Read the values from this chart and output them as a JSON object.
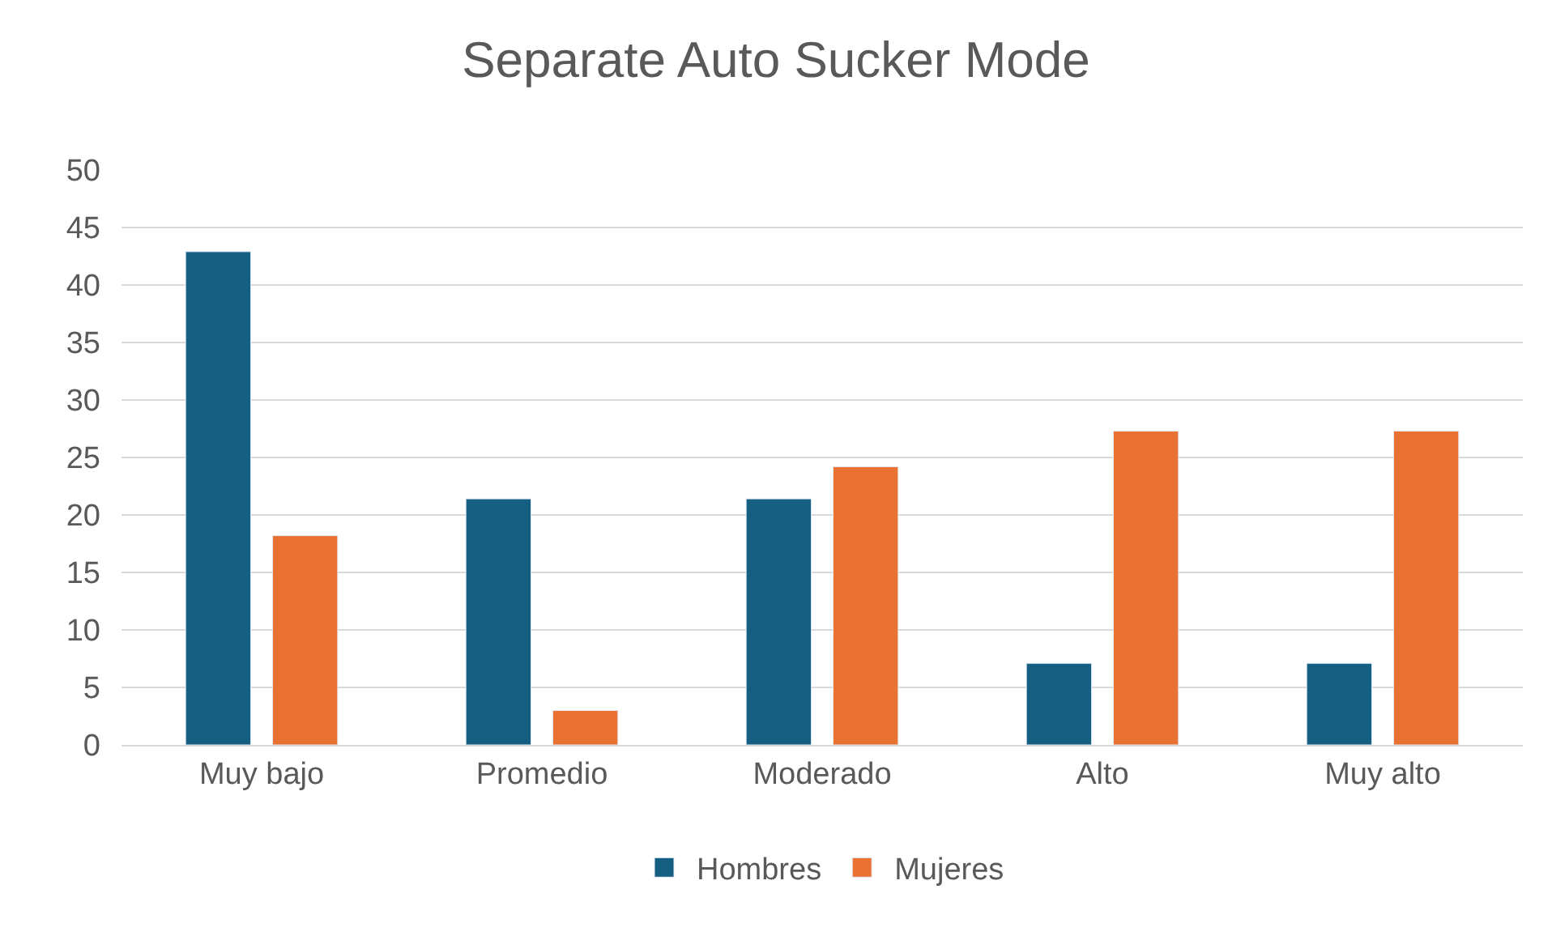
{
  "chart_data": {
    "type": "bar",
    "title": "Separate Auto Sucker Mode",
    "categories": [
      "Muy bajo",
      "Promedio",
      "Moderado",
      "Alto",
      "Muy alto"
    ],
    "series": [
      {
        "name": "Hombres",
        "color": "#156082",
        "values": [
          42.9,
          21.4,
          21.4,
          7.1,
          7.1
        ]
      },
      {
        "name": "Mujeres",
        "color": "#e97132",
        "values": [
          18.2,
          3.0,
          24.2,
          27.3,
          27.3
        ]
      }
    ],
    "ylim": [
      0,
      50
    ],
    "yticks": [
      0,
      5,
      10,
      15,
      20,
      25,
      30,
      35,
      40,
      45,
      50
    ],
    "grid": "y",
    "legend": "bottom"
  }
}
